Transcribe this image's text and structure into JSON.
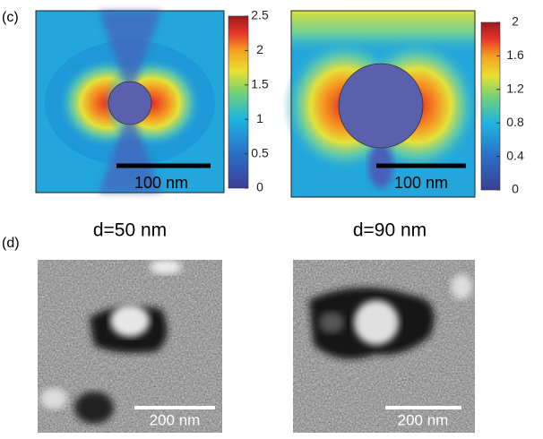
{
  "panel_c": {
    "label": "(c)",
    "maps": [
      {
        "scale_bar": "100 nm",
        "colorbar": {
          "lim": [
            0,
            2.5
          ],
          "ticks": [
            0,
            0.5,
            1,
            1.5,
            2,
            2.5
          ]
        }
      },
      {
        "scale_bar": "100 nm",
        "colorbar": {
          "lim": [
            0,
            2
          ],
          "ticks": [
            0,
            0.4,
            0.8,
            1.2,
            1.6,
            2
          ]
        }
      }
    ]
  },
  "captions": [
    "d=50 nm",
    "d=90 nm"
  ],
  "panel_d": {
    "label": "(d)",
    "images": [
      {
        "scale_bar": "200 nm"
      },
      {
        "scale_bar": "200 nm"
      }
    ]
  }
}
